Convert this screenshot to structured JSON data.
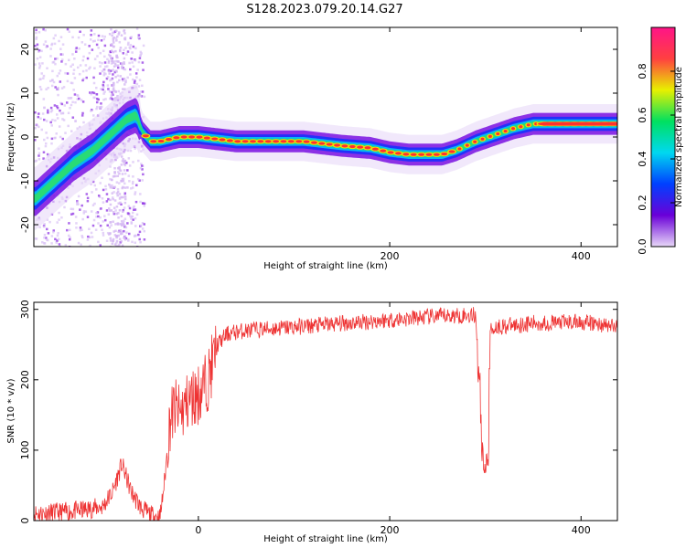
{
  "title": "S128.2023.079.20.14.G27",
  "chart_data": [
    {
      "type": "heatmap",
      "xlabel": "Height of straight line (km)",
      "ylabel": "Frequency (Hz)",
      "xlim": [
        -172,
        438
      ],
      "ylim": [
        -25,
        25
      ],
      "xticks": [
        0,
        200,
        400
      ],
      "yticks": [
        20,
        10,
        0,
        -10,
        -20
      ],
      "colorbar": {
        "label": "Normalized spectral amplitude",
        "range": [
          0,
          1
        ],
        "ticks": [
          "0.0",
          "0.2",
          "0.4",
          "0.6",
          "0.8"
        ],
        "colors": [
          "#e8d8f8",
          "#6a00d8",
          "#0040ff",
          "#00d8f0",
          "#00e060",
          "#e8f000",
          "#ff4040",
          "#ff1488"
        ]
      },
      "ridge": [
        [
          -170,
          -14
        ],
        [
          -150,
          -10
        ],
        [
          -130,
          -6
        ],
        [
          -110,
          -3
        ],
        [
          -90,
          1
        ],
        [
          -75,
          4
        ],
        [
          -65,
          5
        ],
        [
          -58,
          1
        ],
        [
          -50,
          -1
        ],
        [
          -40,
          -1
        ],
        [
          -20,
          0
        ],
        [
          0,
          0
        ],
        [
          40,
          -1
        ],
        [
          80,
          -1
        ],
        [
          110,
          -1
        ],
        [
          130,
          -1.5
        ],
        [
          150,
          -2
        ],
        [
          180,
          -2.5
        ],
        [
          200,
          -3.5
        ],
        [
          220,
          -4
        ],
        [
          240,
          -4
        ],
        [
          255,
          -4
        ],
        [
          270,
          -3
        ],
        [
          290,
          -1
        ],
        [
          310,
          0.5
        ],
        [
          330,
          2
        ],
        [
          350,
          3
        ],
        [
          400,
          3
        ],
        [
          438,
          3
        ]
      ]
    },
    {
      "type": "line",
      "color": "#ee3333",
      "xlabel": "Height of straight line (km)",
      "ylabel": "SNR (10 * v/v)",
      "xlim": [
        -172,
        438
      ],
      "ylim": [
        0,
        310
      ],
      "xticks": [
        0,
        200,
        400
      ],
      "yticks": [
        0,
        100,
        200,
        300
      ],
      "x": [
        -172,
        -140,
        -120,
        -100,
        -90,
        -80,
        -70,
        -60,
        -50,
        -40,
        -35,
        -30,
        -25,
        -20,
        -10,
        0,
        10,
        20,
        30,
        40,
        50,
        70,
        100,
        150,
        200,
        250,
        290,
        298,
        300,
        303,
        305,
        310,
        350,
        400,
        438
      ],
      "y": [
        10,
        12,
        15,
        20,
        40,
        80,
        40,
        18,
        8,
        5,
        60,
        140,
        160,
        150,
        170,
        180,
        200,
        250,
        265,
        268,
        270,
        272,
        275,
        280,
        285,
        290,
        292,
        80,
        75,
        90,
        270,
        275,
        280,
        282,
        275
      ]
    }
  ]
}
